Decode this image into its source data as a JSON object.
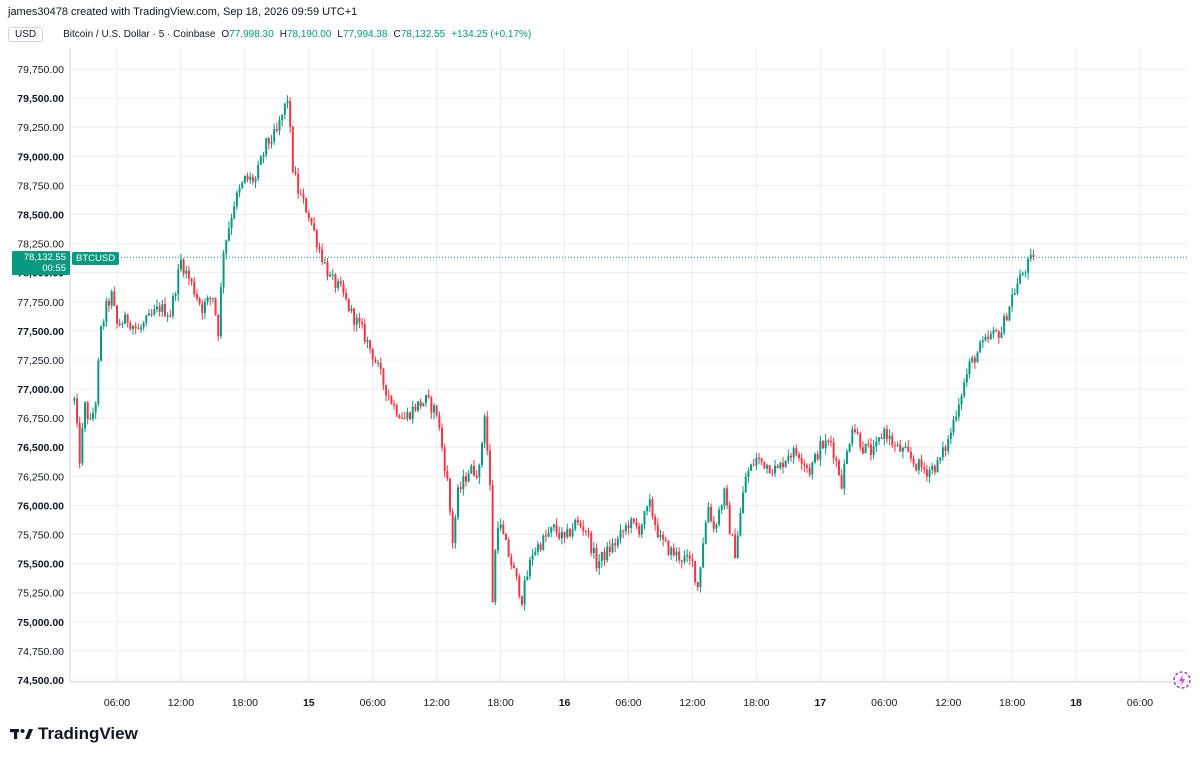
{
  "header": {
    "attribution": "james30478 created with TradingView.com, Sep 18, 2026 09:59 UTC+1"
  },
  "legend": {
    "currency": "USD",
    "symbol": "Bitcoin / U.S. Dollar · 5 · Coinbase",
    "open_label": "O",
    "open": "77,998.30",
    "high_label": "H",
    "high": "78,190.00",
    "low_label": "L",
    "low": "77,994.38",
    "close_label": "C",
    "close": "78,132.55",
    "change": "+134.25 (+0.17%)"
  },
  "price_tag": {
    "price": "78,132.55",
    "countdown": "00:55",
    "ticker": "BTCUSD"
  },
  "brand": {
    "name": "TradingView",
    "logo_icon": "tradingview-logo-icon"
  },
  "colors": {
    "up": "#089981",
    "down": "#f23645",
    "grid": "#ebedf0",
    "axis_text": "#131722"
  },
  "icons": {
    "corner": "sparkle-icon"
  },
  "chart_data": {
    "type": "candlestick",
    "symbol": "BTCUSD",
    "interval": "5",
    "y_axis_position": "left",
    "ylim": [
      74500,
      79750
    ],
    "y_ticks": [
      "74,500.00",
      "74,750.00",
      "75,000.00",
      "75,250.00",
      "75,500.00",
      "75,750.00",
      "76,000.00",
      "76,250.00",
      "76,500.00",
      "76,750.00",
      "77,000.00",
      "77,250.00",
      "77,500.00",
      "77,750.00",
      "78,000.00",
      "78,250.00",
      "78,500.00",
      "78,750.00",
      "79,000.00",
      "79,250.00",
      "79,500.00",
      "79,750.00"
    ],
    "bold_y_ticks": [
      "74,500.00",
      "75,000.00",
      "75,500.00",
      "76,000.00",
      "76,500.00",
      "77,000.00",
      "77,500.00",
      "78,000.00",
      "78,500.00",
      "79,000.00",
      "79,500.00"
    ],
    "x_range_hours": [
      0,
      91
    ],
    "x_ticks": [
      {
        "label": "06:00",
        "hour": 4
      },
      {
        "label": "12:00",
        "hour": 10
      },
      {
        "label": "18:00",
        "hour": 16
      },
      {
        "label": "15",
        "hour": 22,
        "bold": true
      },
      {
        "label": "06:00",
        "hour": 28
      },
      {
        "label": "12:00",
        "hour": 34
      },
      {
        "label": "18:00",
        "hour": 40
      },
      {
        "label": "16",
        "hour": 46,
        "bold": true
      },
      {
        "label": "06:00",
        "hour": 52
      },
      {
        "label": "12:00",
        "hour": 58
      },
      {
        "label": "18:00",
        "hour": 64
      },
      {
        "label": "17",
        "hour": 70,
        "bold": true
      },
      {
        "label": "06:00",
        "hour": 76
      },
      {
        "label": "12:00",
        "hour": 82
      },
      {
        "label": "18:00",
        "hour": 88
      },
      {
        "label": "18",
        "hour": 94,
        "bold": true
      },
      {
        "label": "06:00",
        "hour": 100
      }
    ],
    "price_path": [
      [
        0,
        76900
      ],
      [
        0.5,
        76400
      ],
      [
        1,
        76850
      ],
      [
        1.5,
        76700
      ],
      [
        2,
        76900
      ],
      [
        2.5,
        77500
      ],
      [
        3,
        77700
      ],
      [
        3.5,
        77800
      ],
      [
        4,
        77550
      ],
      [
        5,
        77600
      ],
      [
        6,
        77500
      ],
      [
        7,
        77600
      ],
      [
        8,
        77700
      ],
      [
        9,
        77650
      ],
      [
        10,
        78100
      ],
      [
        11,
        77900
      ],
      [
        12,
        77700
      ],
      [
        13,
        77800
      ],
      [
        13.5,
        77500
      ],
      [
        14,
        78200
      ],
      [
        15,
        78600
      ],
      [
        16,
        78800
      ],
      [
        17,
        78800
      ],
      [
        18,
        79100
      ],
      [
        19,
        79200
      ],
      [
        20,
        79500
      ],
      [
        20.5,
        78900
      ],
      [
        21,
        78700
      ],
      [
        22,
        78500
      ],
      [
        23,
        78200
      ],
      [
        24,
        77950
      ],
      [
        25,
        77850
      ],
      [
        26,
        77650
      ],
      [
        27,
        77500
      ],
      [
        28,
        77300
      ],
      [
        29,
        77050
      ],
      [
        30,
        76850
      ],
      [
        31,
        76750
      ],
      [
        32,
        76850
      ],
      [
        33,
        76900
      ],
      [
        34,
        76800
      ],
      [
        35,
        76200
      ],
      [
        35.5,
        75700
      ],
      [
        36,
        76100
      ],
      [
        37,
        76300
      ],
      [
        38,
        76300
      ],
      [
        38.5,
        76800
      ],
      [
        39,
        76150
      ],
      [
        39.3,
        75000
      ],
      [
        39.6,
        75900
      ],
      [
        40,
        75800
      ],
      [
        41,
        75500
      ],
      [
        42,
        75200
      ],
      [
        43,
        75600
      ],
      [
        44,
        75700
      ],
      [
        45,
        75800
      ],
      [
        46,
        75700
      ],
      [
        47,
        75850
      ],
      [
        48,
        75800
      ],
      [
        49,
        75500
      ],
      [
        50,
        75600
      ],
      [
        51,
        75700
      ],
      [
        52,
        75850
      ],
      [
        53,
        75800
      ],
      [
        54,
        76000
      ],
      [
        55,
        75700
      ],
      [
        56,
        75600
      ],
      [
        57,
        75550
      ],
      [
        58,
        75500
      ],
      [
        58.5,
        75300
      ],
      [
        59,
        75700
      ],
      [
        59.5,
        76000
      ],
      [
        60,
        75800
      ],
      [
        61,
        76100
      ],
      [
        61.5,
        75800
      ],
      [
        62,
        75600
      ],
      [
        63,
        76250
      ],
      [
        64,
        76400
      ],
      [
        65,
        76350
      ],
      [
        66,
        76300
      ],
      [
        67,
        76450
      ],
      [
        68,
        76450
      ],
      [
        69,
        76300
      ],
      [
        70,
        76500
      ],
      [
        71,
        76550
      ],
      [
        72,
        76200
      ],
      [
        73,
        76700
      ],
      [
        74,
        76500
      ],
      [
        75,
        76450
      ],
      [
        76,
        76650
      ],
      [
        77,
        76500
      ],
      [
        78,
        76450
      ],
      [
        79,
        76350
      ],
      [
        80,
        76300
      ],
      [
        81,
        76350
      ],
      [
        82,
        76550
      ],
      [
        83,
        76900
      ],
      [
        84,
        77200
      ],
      [
        85,
        77350
      ],
      [
        86,
        77450
      ],
      [
        87,
        77500
      ],
      [
        88,
        77800
      ],
      [
        89,
        78000
      ],
      [
        90,
        78132.55
      ]
    ],
    "last_price": 78132.55
  }
}
